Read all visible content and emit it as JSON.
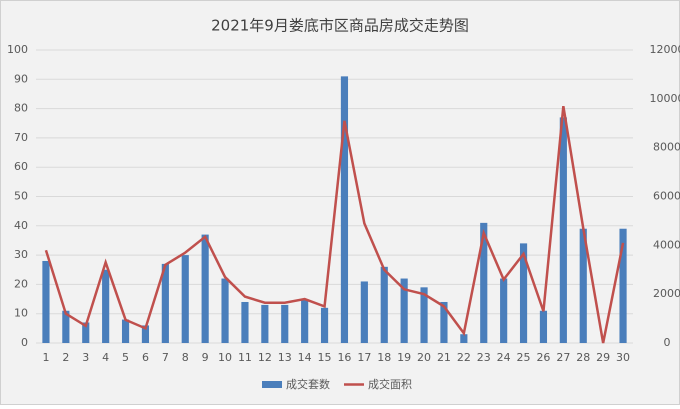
{
  "chart_data": {
    "type": "bar-line",
    "title": "2021年9月娄底市区商品房成交走势图",
    "categories": [
      "1",
      "2",
      "3",
      "4",
      "5",
      "6",
      "7",
      "8",
      "9",
      "10",
      "11",
      "12",
      "13",
      "14",
      "15",
      "16",
      "17",
      "18",
      "19",
      "20",
      "21",
      "22",
      "23",
      "24",
      "25",
      "26",
      "27",
      "28",
      "29",
      "30"
    ],
    "series": [
      {
        "name": "成交套数",
        "color": "#4a7ebb",
        "type": "bar",
        "values": [
          28,
          11,
          7,
          25,
          8,
          6,
          27,
          30,
          37,
          22,
          14,
          13,
          13,
          15,
          12,
          91,
          21,
          26,
          22,
          19,
          14,
          3,
          41,
          22,
          34,
          11,
          77,
          39,
          0,
          39
        ]
      },
      {
        "name": "成交面积",
        "color": "#c0504d",
        "type": "line",
        "axis": "y2",
        "values": [
          3800,
          1200,
          700,
          3300,
          950,
          600,
          3200,
          3700,
          4350,
          2700,
          1900,
          1650,
          1650,
          1800,
          1500,
          9100,
          4900,
          3000,
          2200,
          2000,
          1500,
          400,
          4500,
          2600,
          3650,
          1300,
          9700,
          4700,
          0,
          4100
        ]
      }
    ],
    "ylim": [
      0,
      100
    ],
    "yticks": [
      0,
      10,
      20,
      30,
      40,
      50,
      60,
      70,
      80,
      90,
      100
    ],
    "y2lim": [
      0,
      12000
    ],
    "y2ticks": [
      0,
      2000,
      4000,
      6000,
      8000,
      10000,
      12000
    ],
    "grid": true,
    "legend": "bottom"
  }
}
